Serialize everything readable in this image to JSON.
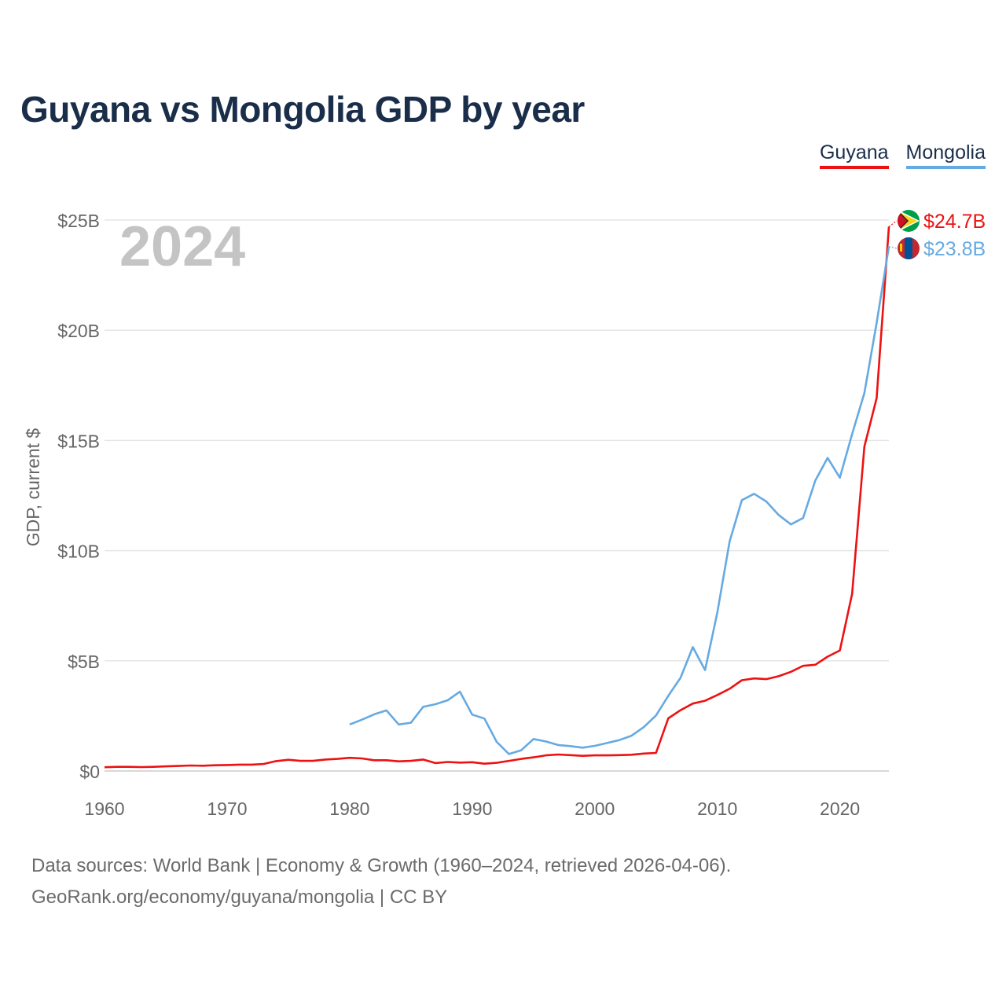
{
  "colors": {
    "guyana": "#ee1111",
    "mongolia": "#66aae2",
    "title": "#1a2e4a",
    "axis_text": "#666666",
    "grid": "#e6e6e6",
    "year_watermark": "#c4c4c4"
  },
  "footer": {
    "line1": "Data sources: World Bank | Economy & Growth (1960–2024, retrieved 2026-04-06).",
    "line2": "GeoRank.org/economy/guyana/mongolia | CC BY"
  },
  "chart_data": {
    "type": "line",
    "title": "Guyana vs Mongolia GDP by year",
    "xlabel": "",
    "ylabel": "GDP, current $",
    "year_label": "2024",
    "xlim": [
      1960,
      2024
    ],
    "ylim": [
      0,
      25
    ],
    "y_unit": "billions USD",
    "x_ticks": [
      "1960",
      "1970",
      "1980",
      "1990",
      "2000",
      "2010",
      "2020"
    ],
    "y_ticks": [
      "$0",
      "$5B",
      "$10B",
      "$15B",
      "$20B",
      "$25B"
    ],
    "legend": [
      "Guyana",
      "Mongolia"
    ],
    "legend_position": "top-right",
    "grid": true,
    "series": [
      {
        "name": "Guyana",
        "color": "#ee1111",
        "end_label": "$24.7B",
        "start_year": 1960,
        "values": [
          0.17,
          0.19,
          0.19,
          0.18,
          0.19,
          0.21,
          0.23,
          0.25,
          0.24,
          0.26,
          0.27,
          0.29,
          0.29,
          0.32,
          0.45,
          0.51,
          0.46,
          0.46,
          0.52,
          0.55,
          0.6,
          0.57,
          0.49,
          0.49,
          0.44,
          0.46,
          0.52,
          0.36,
          0.41,
          0.38,
          0.4,
          0.33,
          0.37,
          0.46,
          0.55,
          0.62,
          0.71,
          0.75,
          0.72,
          0.69,
          0.71,
          0.71,
          0.72,
          0.74,
          0.79,
          0.82,
          2.39,
          2.76,
          3.06,
          3.19,
          3.45,
          3.73,
          4.12,
          4.2,
          4.17,
          4.3,
          4.5,
          4.77,
          4.82,
          5.19,
          5.47,
          8.04,
          14.72,
          16.92,
          24.7
        ]
      },
      {
        "name": "Mongolia",
        "color": "#66aae2",
        "end_label": "$23.8B",
        "start_year": 1980,
        "values": [
          2.11,
          2.33,
          2.57,
          2.75,
          2.11,
          2.19,
          2.91,
          3.03,
          3.21,
          3.6,
          2.56,
          2.38,
          1.32,
          0.77,
          0.94,
          1.45,
          1.34,
          1.18,
          1.13,
          1.06,
          1.14,
          1.27,
          1.4,
          1.6,
          1.99,
          2.52,
          3.41,
          4.23,
          5.62,
          4.58,
          7.19,
          10.41,
          12.29,
          12.58,
          12.23,
          11.62,
          11.19,
          11.48,
          13.18,
          14.21,
          13.31,
          15.29,
          17.15,
          20.33,
          23.8
        ]
      }
    ]
  }
}
